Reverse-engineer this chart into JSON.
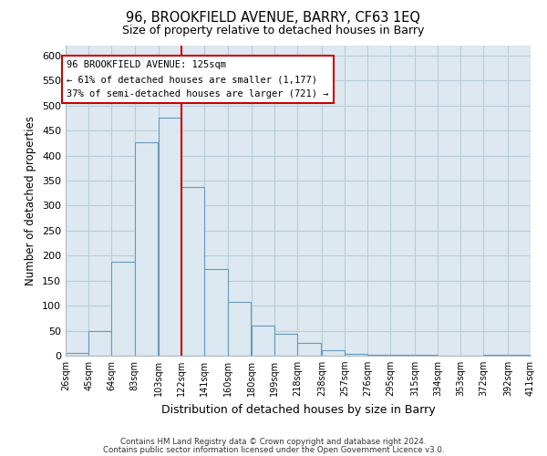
{
  "title": "96, BROOKFIELD AVENUE, BARRY, CF63 1EQ",
  "subtitle": "Size of property relative to detached houses in Barry",
  "xlabel": "Distribution of detached houses by size in Barry",
  "ylabel": "Number of detached properties",
  "bar_left_edges": [
    26,
    45,
    64,
    83,
    103,
    122,
    141,
    160,
    180,
    199,
    218,
    238,
    257,
    276,
    295,
    315,
    334,
    353,
    372,
    392
  ],
  "bar_heights": [
    5,
    50,
    187,
    427,
    476,
    338,
    174,
    108,
    61,
    44,
    25,
    11,
    3,
    2,
    1,
    1,
    0,
    0,
    1,
    1
  ],
  "bin_width": 19,
  "tick_labels": [
    "26sqm",
    "45sqm",
    "64sqm",
    "83sqm",
    "103sqm",
    "122sqm",
    "141sqm",
    "160sqm",
    "180sqm",
    "199sqm",
    "218sqm",
    "238sqm",
    "257sqm",
    "276sqm",
    "295sqm",
    "315sqm",
    "334sqm",
    "353sqm",
    "372sqm",
    "392sqm",
    "411sqm"
  ],
  "ylim": [
    0,
    620
  ],
  "yticks": [
    0,
    50,
    100,
    150,
    200,
    250,
    300,
    350,
    400,
    450,
    500,
    550,
    600
  ],
  "bar_color": "#dce8f0",
  "bar_edge_color": "#6699bb",
  "vline_x": 122,
  "vline_color": "#cc0000",
  "annotation_title": "96 BROOKFIELD AVENUE: 125sqm",
  "annotation_line1": "← 61% of detached houses are smaller (1,177)",
  "annotation_line2": "37% of semi-detached houses are larger (721) →",
  "annotation_box_color": "#ffffff",
  "annotation_box_edge": "#cc0000",
  "footnote1": "Contains HM Land Registry data © Crown copyright and database right 2024.",
  "footnote2": "Contains public sector information licensed under the Open Government Licence v3.0.",
  "fig_background_color": "#ffffff",
  "plot_background_color": "#dde8f0",
  "grid_color": "#b8cdd8"
}
